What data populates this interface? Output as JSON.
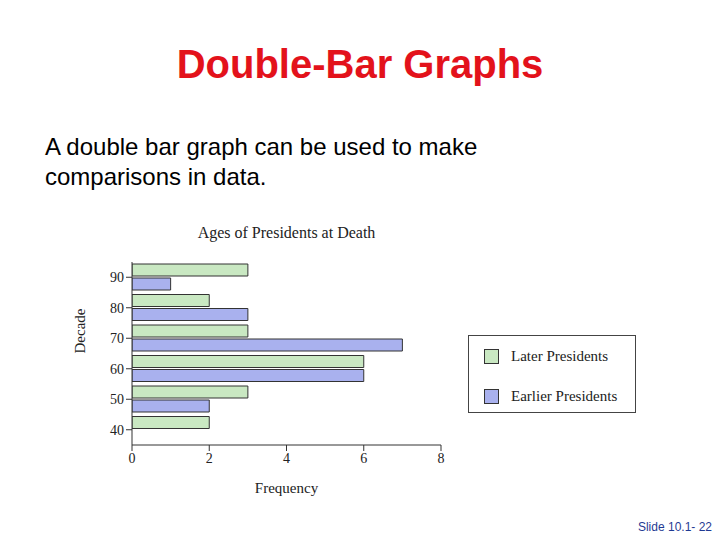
{
  "slide": {
    "title": "Double-Bar Graphs",
    "text": "A double bar graph can be used to make comparisons in data.",
    "footer": "Slide 10.1- 22"
  },
  "chart_data": {
    "type": "bar",
    "orientation": "horizontal",
    "title": "Ages of Presidents at Death",
    "x_label": "Frequency",
    "y_label": "Decade",
    "categories": [
      "40",
      "50",
      "60",
      "70",
      "80",
      "90"
    ],
    "series": [
      {
        "name": "Later Presidents",
        "color": "#c9e8c2",
        "values": [
          2,
          3,
          6,
          3,
          2,
          3
        ]
      },
      {
        "name": "Earlier Presidents",
        "color": "#a9b1ee",
        "values": [
          0,
          2,
          6,
          7,
          3,
          1
        ]
      }
    ],
    "xlim": [
      0,
      8
    ],
    "xticks": [
      0,
      2,
      4,
      6,
      8
    ],
    "grid": false,
    "legend": "right"
  }
}
